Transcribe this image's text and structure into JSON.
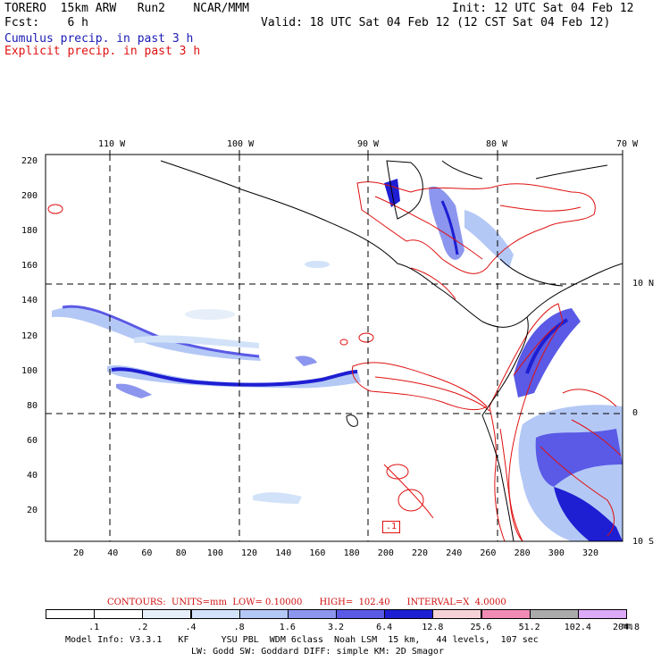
{
  "header": {
    "model": "TORERO  15km ARW   Run2    NCAR/MMM",
    "init": "Init: 12 UTC Sat 04 Feb 12",
    "fcst": "Fcst:    6 h",
    "valid": "Valid: 18 UTC Sat 04 Feb 12 (12 CST Sat 04 Feb 12)",
    "legend_cumulus": "Cumulus precip. in past 3 h",
    "legend_explicit": "Explicit precip. in past 3 h"
  },
  "colors": {
    "cumulus": "#1a1ab4",
    "explicit": "#e01010"
  },
  "map": {
    "top_lon_labels": [
      "110 W",
      "100 W",
      "90 W",
      "80 W",
      "70 W"
    ],
    "right_lat_labels": [
      "10 N",
      "0",
      "10 S"
    ],
    "left_ticks": [
      "220",
      "200",
      "180",
      "160",
      "140",
      "120",
      "100",
      "80",
      "60",
      "40",
      "20"
    ],
    "bottom_ticks": [
      "20",
      "40",
      "60",
      "80",
      "100",
      "120",
      "140",
      "160",
      "180",
      "200",
      "220",
      "240",
      "260",
      "280",
      "300",
      "320"
    ],
    "contour_label": ".1"
  },
  "colorbar": {
    "contours_text": "CONTOURS:  UNITS=mm  LOW= 0.10000      HIGH=  102.40      INTERVAL=X  4.0000",
    "labels": [
      ".1",
      ".2",
      ".4",
      ".8",
      "1.6",
      "3.2",
      "6.4",
      "12.8",
      "25.6",
      "51.2",
      "102.4",
      "204.8"
    ],
    "unit": "mm",
    "colors": [
      "#ffffff",
      "#ffffff",
      "#e6eefa",
      "#d2e2f8",
      "#b4c8f6",
      "#8c96ee",
      "#5a5ae6",
      "#1e1ed2",
      "#f6d2d6",
      "#f08cb4",
      "#aaaaaa",
      "#dcaaf8"
    ]
  },
  "footer": {
    "line1": "Model Info: V3.3.1   KF      YSU PBL  WDM 6class  Noah LSM  15 km,   44 levels,  107 sec",
    "line2": "LW: Godd SW: Goddard DIFF: simple KM: 2D Smagor"
  }
}
